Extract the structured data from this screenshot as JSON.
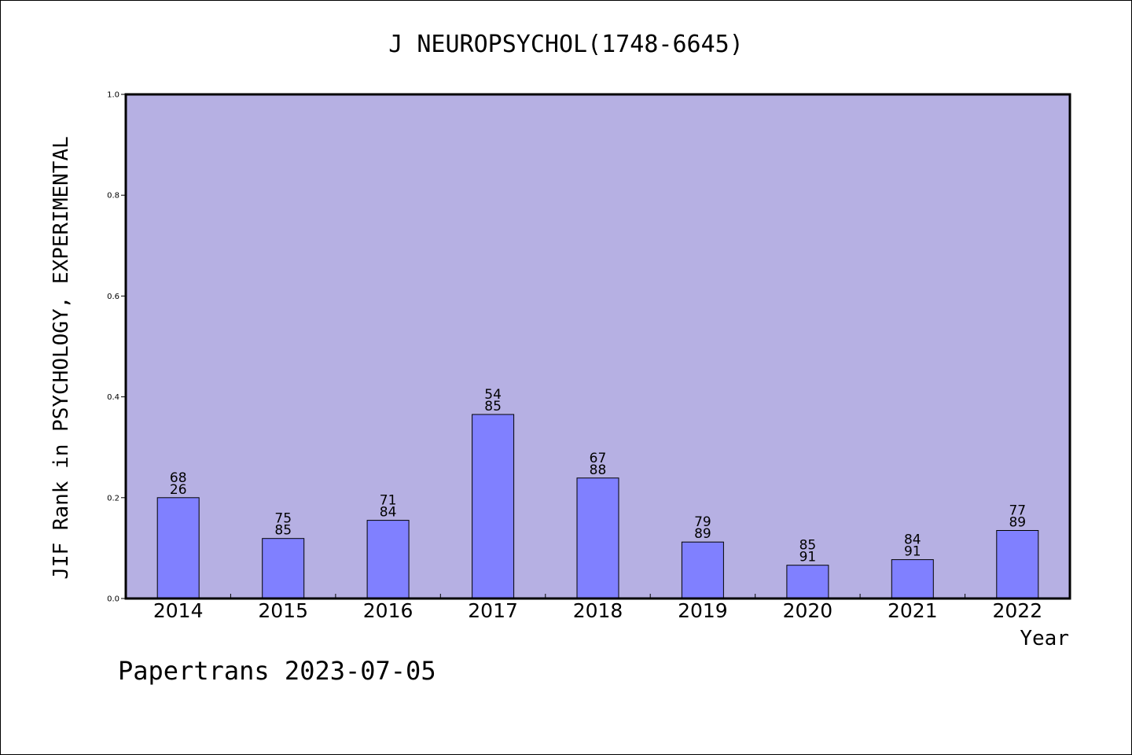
{
  "chart_data": {
    "type": "bar",
    "title": "J NEUROPSYCHOL(1748-6645)",
    "xlabel": "Year",
    "ylabel": "JIF Rank in PSYCHOLOGY, EXPERIMENTAL",
    "ylim": [
      0,
      1.0
    ],
    "yticks": [
      "0.0",
      "0.2",
      "0.4",
      "0.6",
      "0.8",
      "1.0"
    ],
    "categories": [
      "2014",
      "2015",
      "2016",
      "2017",
      "2018",
      "2019",
      "2020",
      "2021",
      "2022"
    ],
    "values": [
      0.2,
      0.119,
      0.155,
      0.365,
      0.239,
      0.112,
      0.066,
      0.077,
      0.135
    ],
    "labels_top": [
      "68",
      "75",
      "71",
      "54",
      "67",
      "79",
      "85",
      "84",
      "77"
    ],
    "labels_bottom": [
      "26",
      "85",
      "84",
      "85",
      "88",
      "89",
      "91",
      "91",
      "89"
    ],
    "grid": false,
    "legend": "none",
    "colors": {
      "plot_bg": "#b6b0e3",
      "bar": "#8080ff",
      "bar_edge": "#000000"
    }
  },
  "footer": "Papertrans 2023-07-05"
}
